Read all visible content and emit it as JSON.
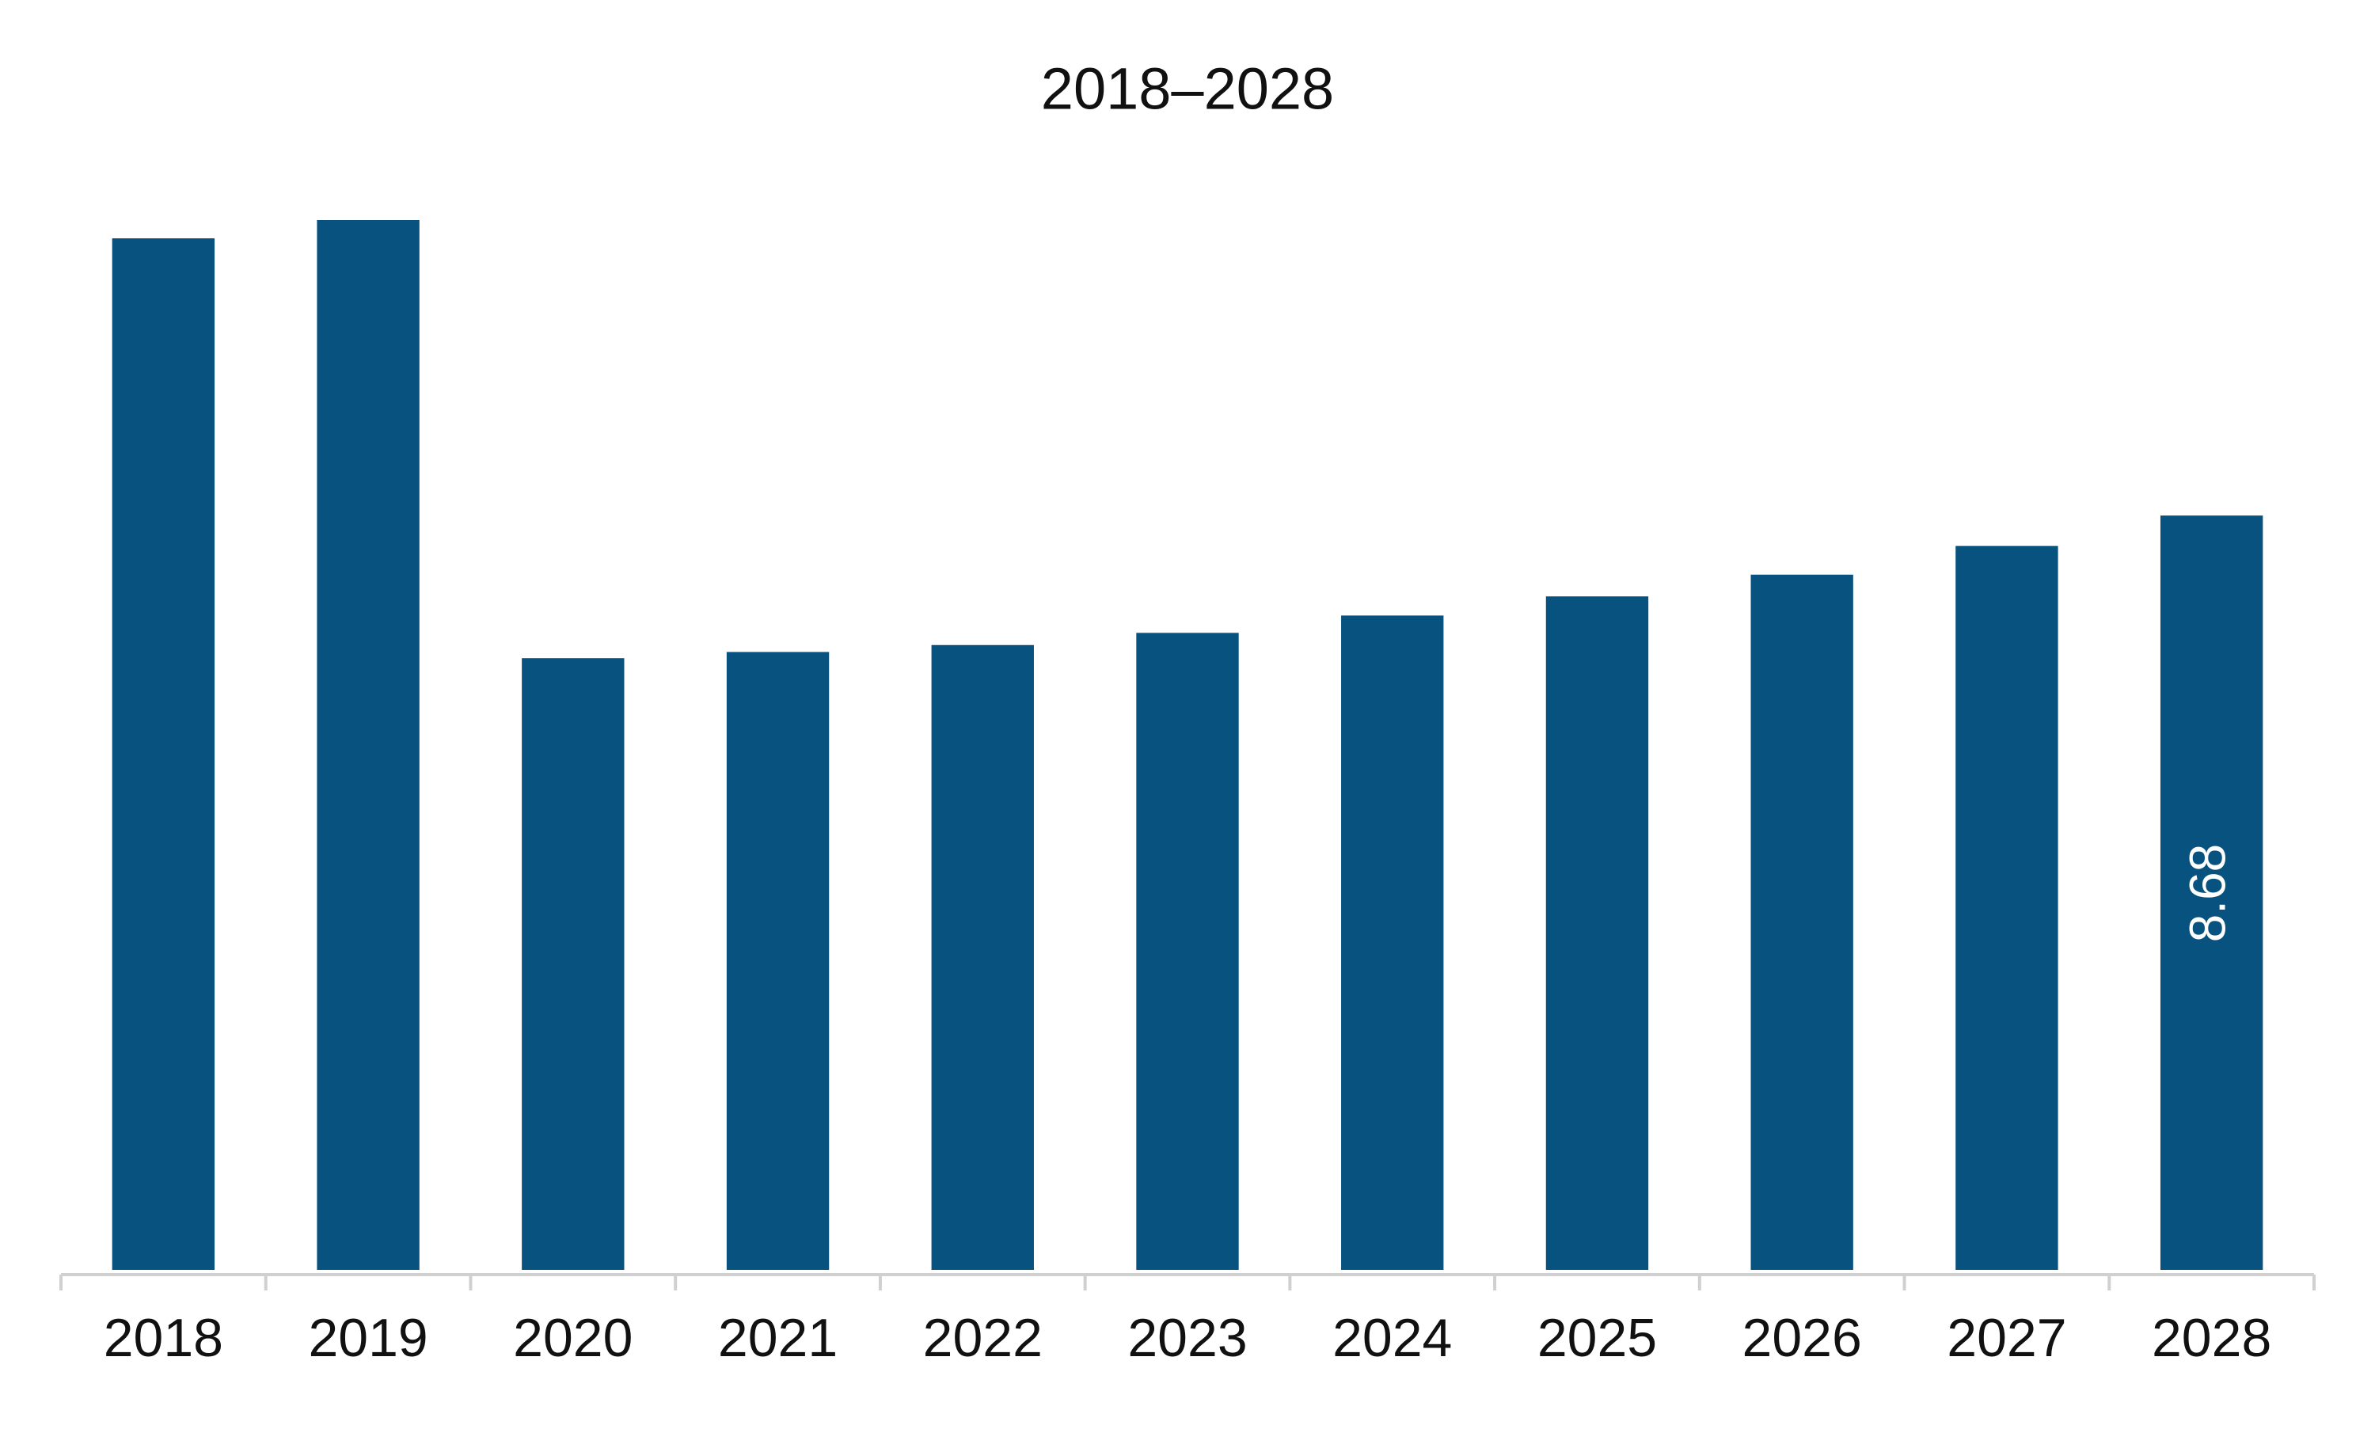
{
  "chart_data": {
    "type": "bar",
    "title": "2018–2028",
    "categories": [
      "2018",
      "2019",
      "2020",
      "2021",
      "2022",
      "2023",
      "2024",
      "2025",
      "2026",
      "2027",
      "2028"
    ],
    "values": [
      11.87,
      12.08,
      7.04,
      7.11,
      7.19,
      7.33,
      7.53,
      7.75,
      8.0,
      8.33,
      8.68
    ],
    "value_labels": [
      null,
      null,
      null,
      null,
      null,
      null,
      null,
      null,
      null,
      null,
      "8.68"
    ],
    "color": "#08527f"
  }
}
